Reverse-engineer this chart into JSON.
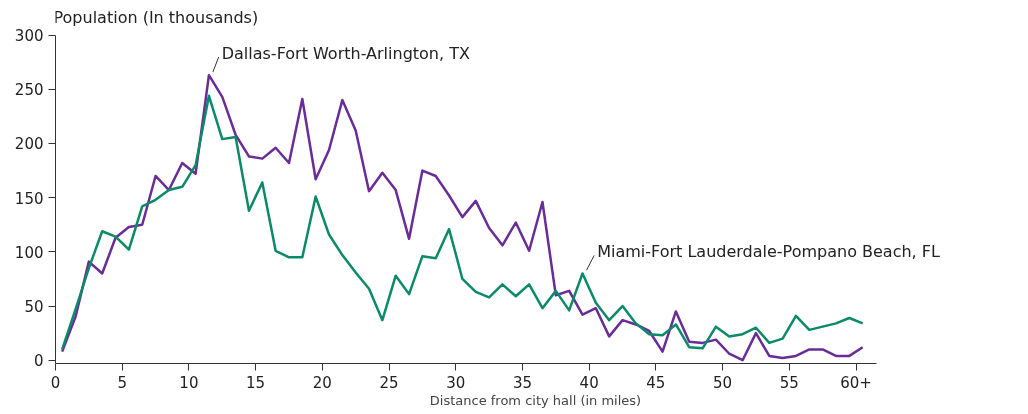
{
  "chart_data": {
    "type": "line",
    "ylabel": "Population (In thousands)",
    "xlabel": "Distance from city hall (in miles)",
    "x": [
      0.5,
      1.5,
      2.5,
      3.5,
      4.5,
      5.5,
      6.5,
      7.5,
      8.5,
      9.5,
      10.5,
      11.5,
      12.5,
      13.5,
      14.5,
      15.5,
      16.5,
      17.5,
      18.5,
      19.5,
      20.5,
      21.5,
      22.5,
      23.5,
      24.5,
      25.5,
      26.5,
      27.5,
      28.5,
      29.5,
      30.5,
      31.5,
      32.5,
      33.5,
      34.5,
      35.5,
      36.5,
      37.5,
      38.5,
      39.5,
      40.5,
      41.5,
      42.5,
      43.5,
      44.5,
      45.5,
      46.5,
      47.5,
      48.5,
      49.5,
      50.5,
      51.5,
      52.5,
      53.5,
      54.5,
      55.5,
      56.5,
      57.5,
      58.5,
      59.5,
      60.5
    ],
    "series": [
      {
        "name": "Dallas-Fort Worth-Arlington, TX",
        "color": "#6a2c96",
        "values": [
          8,
          40,
          91,
          80,
          113,
          123,
          125,
          170,
          157,
          182,
          172,
          263,
          243,
          208,
          188,
          186,
          196,
          182,
          241,
          167,
          194,
          240,
          212,
          156,
          173,
          157,
          112,
          175,
          170,
          152,
          132,
          147,
          122,
          106,
          127,
          101,
          146,
          60,
          64,
          42,
          48,
          22,
          37,
          33,
          27,
          8,
          45,
          17,
          16,
          19,
          6,
          0,
          25,
          4,
          2,
          4,
          10,
          10,
          4,
          4,
          12
        ]
      },
      {
        "name": "Miami-Fort Lauderdale-Pompano Beach, FL",
        "color": "#0b8a6a",
        "values": [
          10,
          47,
          85,
          119,
          114,
          102,
          142,
          148,
          157,
          160,
          180,
          244,
          204,
          206,
          138,
          164,
          101,
          95,
          95,
          151,
          116,
          97,
          81,
          66,
          37,
          78,
          61,
          96,
          94,
          121,
          75,
          63,
          58,
          70,
          59,
          70,
          48,
          64,
          46,
          80,
          53,
          37,
          50,
          34,
          24,
          23,
          33,
          12,
          11,
          31,
          22,
          24,
          30,
          16,
          20,
          41,
          28,
          31,
          34,
          39,
          34
        ]
      }
    ],
    "xlim": [
      0,
      61.5
    ],
    "ylim": [
      -3,
      300
    ],
    "xticks": [
      0,
      5,
      10,
      15,
      20,
      25,
      30,
      35,
      40,
      45,
      50,
      55,
      {
        "value": 60,
        "label": "60+"
      }
    ],
    "yticks": [
      0,
      50,
      100,
      150,
      200,
      250,
      300
    ],
    "grid": false,
    "legend": false,
    "marker": "none",
    "line_style": "solid"
  }
}
